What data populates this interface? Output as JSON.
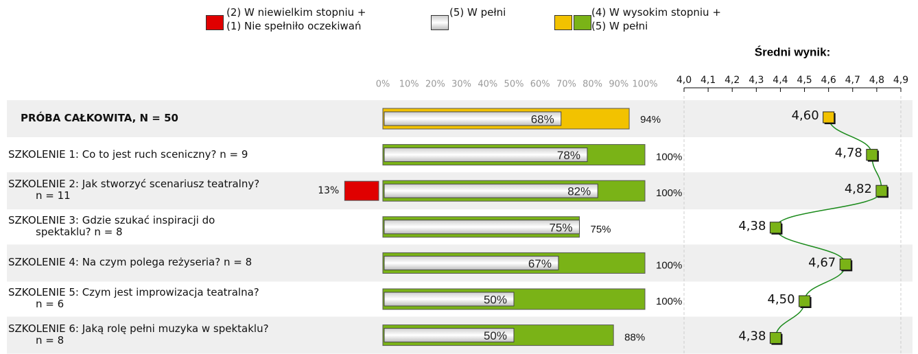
{
  "chart_data": {
    "type": "bar",
    "categories": [
      "PRÓBA CAŁKOWITA, N = 50",
      "SZKOLENIE 1: Co to jest ruch sceniczny? n = 9",
      "SZKOLENIE 2: Jak stworzyć scenariusz teatralny?\nn = 11",
      "SZKOLENIE 3: Gdzie szukać inspiracji do\nspektaklu? n = 8",
      "SZKOLENIE 4: Na czym polega reżyseria? n = 8",
      "SZKOLENIE 5: Czym jest improwizacja teatralna?\nn = 6",
      "SZKOLENIE 6: Jaką rolę pełni muzyka w spektaklu?\nn = 8"
    ],
    "xlim": [
      0,
      100
    ],
    "xticks": [
      {
        "value": 0,
        "label": "0%"
      },
      {
        "value": 10,
        "label": "10%"
      },
      {
        "value": 20,
        "label": "20%"
      },
      {
        "value": 30,
        "label": "30%"
      },
      {
        "value": 40,
        "label": "40%"
      },
      {
        "value": 50,
        "label": "50%"
      },
      {
        "value": 60,
        "label": "60%"
      },
      {
        "value": 70,
        "label": "70%"
      },
      {
        "value": 80,
        "label": "80%"
      },
      {
        "value": 90,
        "label": "90%"
      },
      {
        "value": 100,
        "label": "100%"
      }
    ],
    "series": [
      {
        "name": "(2) W niewielkim stopniu +\n(1) Nie spełniło oczekiwań",
        "color": "#e00000",
        "values": [
          null,
          null,
          13,
          null,
          null,
          null,
          null
        ],
        "value_labels": [
          null,
          null,
          "13%",
          null,
          null,
          null,
          null
        ]
      },
      {
        "name": "(5) W pełni",
        "color": "#ffffff",
        "values": [
          68,
          78,
          82,
          75,
          67,
          50,
          50
        ],
        "value_labels": [
          "68%",
          "78%",
          "82%",
          "75%",
          "67%",
          "50%",
          "50%"
        ]
      },
      {
        "name": "(4) W wysokim stopniu +\n(5) W pełni",
        "color": "#7ab317",
        "colors": [
          "#f2c200",
          "#7ab317",
          "#7ab317",
          "#7ab317",
          "#7ab317",
          "#7ab317",
          "#7ab317"
        ],
        "values": [
          94,
          100,
          100,
          75,
          100,
          100,
          88
        ],
        "value_labels": [
          "94%",
          "100%",
          "100%",
          "75%",
          "100%",
          "100%",
          "88%"
        ]
      }
    ],
    "mean": {
      "title": "Średni wynik:",
      "xlim": [
        4.0,
        4.9
      ],
      "xticks": [
        {
          "value": 4.0,
          "label": "4,0"
        },
        {
          "value": 4.1,
          "label": "4,1"
        },
        {
          "value": 4.2,
          "label": "4,2"
        },
        {
          "value": 4.3,
          "label": "4,3"
        },
        {
          "value": 4.4,
          "label": "4,4"
        },
        {
          "value": 4.5,
          "label": "4,5"
        },
        {
          "value": 4.6,
          "label": "4,6"
        },
        {
          "value": 4.7,
          "label": "4,7"
        },
        {
          "value": 4.8,
          "label": "4,8"
        },
        {
          "value": 4.9,
          "label": "4,9"
        }
      ],
      "values": [
        4.6,
        4.78,
        4.82,
        4.38,
        4.67,
        4.5,
        4.38
      ],
      "value_labels": [
        "4,60",
        "4,78",
        "4,82",
        "4,38",
        "4,67",
        "4,50",
        "4,38"
      ],
      "color": "#1a8a1a",
      "colors": [
        "#f2c200",
        "#7ab317",
        "#7ab317",
        "#7ab317",
        "#7ab317",
        "#7ab317",
        "#7ab317"
      ]
    }
  }
}
